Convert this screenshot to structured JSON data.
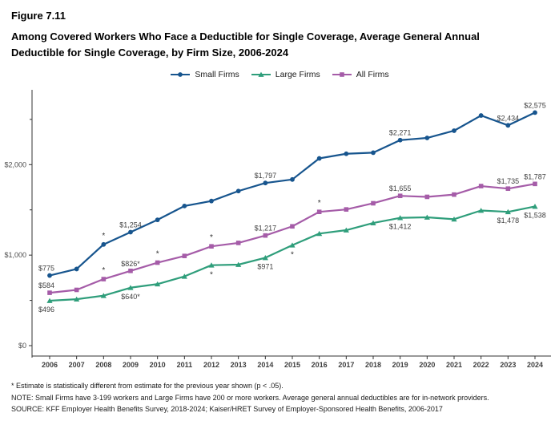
{
  "header": {
    "figure_number": "Figure 7.11",
    "title_line1": "Among Covered Workers Who Face a Deductible for Single Coverage, Average General Annual",
    "title_line2": "Deductible for Single Coverage, by Firm Size, 2006-2024"
  },
  "chart_data": {
    "type": "line",
    "x": [
      2006,
      2007,
      2008,
      2009,
      2010,
      2011,
      2012,
      2013,
      2014,
      2015,
      2016,
      2017,
      2018,
      2019,
      2020,
      2021,
      2022,
      2023,
      2024
    ],
    "series": [
      {
        "name": "Small Firms",
        "color": "#17558E",
        "marker": "circle",
        "values": [
          775,
          847,
          1118,
          1254,
          1390,
          1543,
          1598,
          1708,
          1797,
          1836,
          2069,
          2120,
          2132,
          2271,
          2295,
          2375,
          2543,
          2434,
          2575
        ],
        "labeled_points": [
          {
            "year": 2006,
            "text": "$775",
            "position": "above"
          },
          {
            "year": 2009,
            "text": "$1,254",
            "position": "above"
          },
          {
            "year": 2014,
            "text": "$1,797",
            "position": "above"
          },
          {
            "year": 2019,
            "text": "$2,271",
            "position": "above"
          },
          {
            "year": 2023,
            "text": "$2,434",
            "position": "above"
          },
          {
            "year": 2024,
            "text": "$2,575",
            "position": "above"
          }
        ],
        "significance_asterisks": [
          {
            "year": 2008,
            "position": "above"
          }
        ]
      },
      {
        "name": "Large Firms",
        "color": "#2F9E7B",
        "marker": "triangle",
        "values": [
          496,
          513,
          552,
          640,
          680,
          765,
          889,
          895,
          971,
          1110,
          1238,
          1276,
          1355,
          1412,
          1418,
          1397,
          1493,
          1478,
          1538
        ],
        "labeled_points": [
          {
            "year": 2006,
            "text": "$496",
            "position": "below"
          },
          {
            "year": 2009,
            "text": "$640*",
            "position": "below"
          },
          {
            "year": 2014,
            "text": "$971",
            "position": "below"
          },
          {
            "year": 2019,
            "text": "$1,412",
            "position": "below"
          },
          {
            "year": 2023,
            "text": "$1,478",
            "position": "below"
          },
          {
            "year": 2024,
            "text": "$1,538",
            "position": "below"
          }
        ],
        "significance_asterisks": [
          {
            "year": 2012,
            "position": "below"
          },
          {
            "year": 2015,
            "position": "below"
          }
        ]
      },
      {
        "name": "All Firms",
        "color": "#A55CA8",
        "marker": "square",
        "values": [
          584,
          616,
          735,
          826,
          917,
          991,
          1097,
          1135,
          1217,
          1318,
          1478,
          1505,
          1573,
          1655,
          1644,
          1669,
          1763,
          1735,
          1787
        ],
        "labeled_points": [
          {
            "year": 2006,
            "text": "$584",
            "position": "above"
          },
          {
            "year": 2009,
            "text": "$826*",
            "position": "above"
          },
          {
            "year": 2014,
            "text": "$1,217",
            "position": "above"
          },
          {
            "year": 2019,
            "text": "$1,655",
            "position": "above"
          },
          {
            "year": 2023,
            "text": "$1,735",
            "position": "above"
          },
          {
            "year": 2024,
            "text": "$1,787",
            "position": "above"
          }
        ],
        "significance_asterisks": [
          {
            "year": 2008,
            "position": "above"
          },
          {
            "year": 2010,
            "position": "above"
          },
          {
            "year": 2012,
            "position": "above"
          },
          {
            "year": 2016,
            "position": "above"
          }
        ]
      }
    ],
    "y_axis": {
      "ticks": [
        {
          "value": 0,
          "label": "$0"
        },
        {
          "value": 1000,
          "label": "$1,000"
        },
        {
          "value": 2000,
          "label": "$2,000"
        }
      ],
      "minor_ticks": [
        500,
        1500,
        2500
      ],
      "range": [
        0,
        2800
      ]
    },
    "legend_position": "top",
    "grid": false
  },
  "footnotes": [
    "* Estimate is statistically different from estimate for the previous year shown (p < .05).",
    "NOTE: Small Firms have 3-199 workers and Large Firms have 200 or more workers. Average general annual deductibles are for in-network providers.",
    "SOURCE: KFF Employer Health Benefits Survey, 2018-2024; Kaiser/HRET Survey of Employer-Sponsored Health Benefits, 2006-2017"
  ]
}
